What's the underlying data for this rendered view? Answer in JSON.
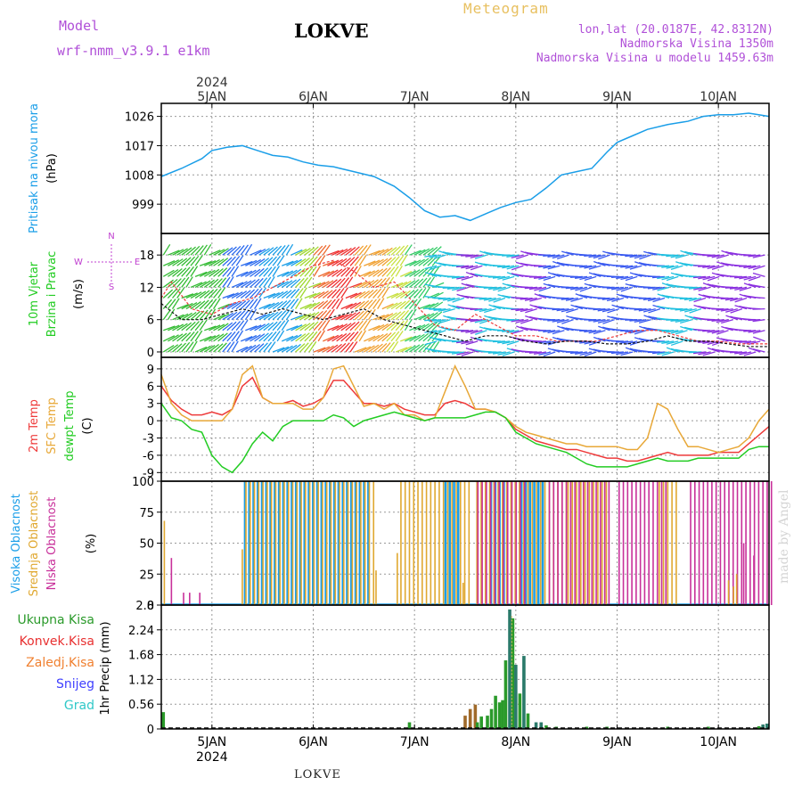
{
  "header": {
    "model_label": "Model",
    "model_name": "wrf-nmm_v3.9.1 e1km",
    "title": "LOKVE",
    "meteogram_label": "Meteogram",
    "coords": "lon,lat (20.0187E, 42.8312N)",
    "elevation": "Nadmorska Visina 1350m",
    "model_elevation": "Nadmorska Visina u modelu 1459.63m"
  },
  "footer": {
    "station": "LOKVE",
    "made_by": "made by Angel"
  },
  "time_axis": {
    "year": "2024",
    "labels": [
      "5JAN",
      "6JAN",
      "7JAN",
      "8JAN",
      "9JAN",
      "10JAN"
    ]
  },
  "legend_compass": {
    "n": "N",
    "s": "S",
    "e": "E",
    "w": "W"
  },
  "colors": {
    "pressure": "#1a9ee8",
    "temp2m": "#ee3a3a",
    "sfc": "#e8a838",
    "dewpt": "#22cc22",
    "high_cloud": "#1a9ee8",
    "mid_cloud": "#e0a830",
    "low_cloud": "#c8309a",
    "precip_total": "#2a9a2a",
    "precip_conv": "#e83030",
    "precip_frozen": "#f08030",
    "precip_snow": "#4040ff",
    "precip_graupel": "#30c8c8"
  },
  "chart_data": [
    {
      "type": "line",
      "panel": "pressure",
      "ylabel_lines": [
        "Pritisak na nivou mora",
        "(hPa)"
      ],
      "ylim": [
        990,
        1030
      ],
      "yticks": [
        999,
        1008,
        1017,
        1026
      ],
      "x_days": [
        4.5,
        4.7,
        4.9,
        5.0,
        5.15,
        5.3,
        5.45,
        5.6,
        5.75,
        5.9,
        6.05,
        6.2,
        6.4,
        6.6,
        6.8,
        6.95,
        7.1,
        7.25,
        7.4,
        7.55,
        7.7,
        7.85,
        8.0,
        8.15,
        8.3,
        8.45,
        8.6,
        8.75,
        8.9,
        9.0,
        9.15,
        9.3,
        9.5,
        9.7,
        9.85,
        10.0,
        10.15,
        10.3,
        10.5
      ],
      "values": [
        1007.5,
        1010,
        1013,
        1015.5,
        1016.5,
        1017,
        1015.5,
        1014,
        1013.5,
        1012,
        1011,
        1010.5,
        1009,
        1007.5,
        1004.5,
        1001,
        997,
        995,
        995.5,
        994,
        996,
        998,
        999.5,
        1000.5,
        1004,
        1008,
        1009,
        1010,
        1015,
        1018,
        1020,
        1022,
        1023.5,
        1024.5,
        1026,
        1026.5,
        1026.5,
        1027,
        1026
      ]
    },
    {
      "type": "line",
      "panel": "wind",
      "ylabel_lines": [
        "10m Vjetar",
        "Brzina i Pravac",
        "(m/s)"
      ],
      "ylim": [
        -1,
        22
      ],
      "yticks": [
        0,
        6,
        12,
        18
      ],
      "series": [
        {
          "name": "wind speed",
          "x_days": [
            4.5,
            4.7,
            4.9,
            5.1,
            5.3,
            5.5,
            5.7,
            5.9,
            6.1,
            6.3,
            6.5,
            6.7,
            6.9,
            7.1,
            7.3,
            7.5,
            7.7,
            7.9,
            8.1,
            8.3,
            8.5,
            8.7,
            8.9,
            9.1,
            9.3,
            9.5,
            9.7,
            9.9,
            10.1,
            10.3,
            10.5
          ],
          "values": [
            9,
            6,
            6,
            7,
            8,
            7,
            8,
            7,
            6,
            7,
            8,
            6,
            5,
            4,
            3,
            2,
            3,
            3,
            2,
            1.5,
            2,
            2,
            1.5,
            1.5,
            2,
            3,
            2,
            2,
            1.5,
            1,
            1
          ]
        },
        {
          "name": "wind gust",
          "x_days": [
            4.5,
            4.6,
            4.8,
            5.0,
            5.2,
            5.4,
            5.6,
            5.8,
            6.0,
            6.2,
            6.4,
            6.6,
            6.8,
            7.0,
            7.2,
            7.4,
            7.6,
            7.8,
            8.0,
            8.2,
            8.4,
            8.6,
            8.8,
            9.0,
            9.2,
            9.4,
            9.6,
            9.8,
            10.0,
            10.2,
            10.5
          ],
          "values": [
            10,
            13,
            8,
            7,
            9,
            10,
            12,
            14,
            16,
            17,
            15,
            12,
            13,
            9,
            5,
            4,
            7,
            5,
            3,
            3,
            2,
            2,
            2,
            3,
            4,
            4,
            3,
            2,
            2,
            1.5,
            1.5
          ]
        }
      ]
    },
    {
      "type": "line",
      "panel": "temperature",
      "ylabel_lines": [
        "2m Temp",
        "SFC Temp",
        "dewpt Temp",
        "(C)"
      ],
      "ylim": [
        -10.5,
        11
      ],
      "yticks": [
        -9,
        -6,
        -3,
        0,
        3,
        6,
        9
      ],
      "x_days": [
        4.5,
        4.6,
        4.7,
        4.8,
        4.9,
        5.0,
        5.1,
        5.2,
        5.3,
        5.4,
        5.5,
        5.6,
        5.7,
        5.8,
        5.9,
        6.0,
        6.1,
        6.2,
        6.3,
        6.4,
        6.5,
        6.6,
        6.7,
        6.8,
        6.9,
        7.0,
        7.1,
        7.2,
        7.3,
        7.4,
        7.5,
        7.6,
        7.7,
        7.8,
        7.9,
        8.0,
        8.1,
        8.2,
        8.3,
        8.4,
        8.5,
        8.6,
        8.7,
        8.8,
        8.9,
        9.0,
        9.1,
        9.2,
        9.3,
        9.4,
        9.5,
        9.6,
        9.7,
        9.8,
        9.9,
        10.0,
        10.1,
        10.2,
        10.3,
        10.4,
        10.5
      ],
      "series": [
        {
          "name": "2m Temp",
          "values": [
            6,
            3.5,
            2,
            1,
            1,
            1.5,
            1,
            2,
            6,
            7.5,
            4,
            3,
            3,
            3.5,
            2.5,
            3,
            4,
            7,
            7,
            5,
            3,
            3,
            2.5,
            3,
            2,
            1.5,
            1,
            1,
            3,
            3.5,
            3,
            2,
            2,
            1.5,
            0.5,
            -1.5,
            -2.5,
            -3.5,
            -4,
            -4.5,
            -5,
            -5,
            -5.5,
            -6,
            -6.5,
            -6.5,
            -7,
            -7,
            -6.5,
            -6,
            -5.5,
            -6,
            -6,
            -6,
            -6,
            -5.5,
            -5.5,
            -5.5,
            -4,
            -2.5,
            -1
          ]
        },
        {
          "name": "SFC Temp",
          "values": [
            8,
            3,
            1,
            0,
            0,
            0,
            0,
            2,
            8,
            9.5,
            4,
            3,
            3,
            3,
            2,
            2,
            4,
            9,
            9.5,
            6,
            2.5,
            3,
            2,
            3,
            1,
            1,
            0,
            0.5,
            5,
            9.5,
            6,
            2,
            2,
            1.5,
            0.5,
            -1,
            -2,
            -2.5,
            -3,
            -3.5,
            -4,
            -4,
            -4.5,
            -4.5,
            -4.5,
            -4.5,
            -5,
            -5,
            -3,
            3,
            2,
            -1.5,
            -4.5,
            -4.5,
            -5,
            -5.5,
            -5,
            -4.5,
            -3,
            0,
            2
          ]
        },
        {
          "name": "dewpt Temp",
          "values": [
            3,
            0.5,
            0,
            -1.5,
            -2,
            -6,
            -8,
            -9,
            -7,
            -4,
            -2,
            -3.5,
            -1,
            0,
            0,
            0,
            0,
            1,
            0.5,
            -1,
            0,
            0.5,
            1,
            1.5,
            1,
            0.5,
            0,
            0.5,
            0.5,
            0.5,
            0.5,
            1,
            1.5,
            1.5,
            0.5,
            -2,
            -3,
            -4,
            -4.5,
            -5,
            -5.5,
            -6.5,
            -7.5,
            -8,
            -8,
            -8,
            -8,
            -7.5,
            -7,
            -6.5,
            -7,
            -7,
            -7,
            -6.5,
            -6.5,
            -6.5,
            -6.5,
            -6.5,
            -5,
            -4.5,
            -4.5
          ]
        }
      ]
    },
    {
      "type": "bar",
      "panel": "cloud",
      "ylabel_lines": [
        "Visoka Oblacnost",
        "Srednja Oblacnost",
        "Niska Oblacnost",
        "(%)"
      ],
      "ylim": [
        0,
        100
      ],
      "yticks": [
        0,
        25,
        50,
        75,
        100
      ],
      "segments": [
        {
          "name": "Visoka Oblacnost",
          "ranges": [
            [
              5.32,
              6.55
            ],
            [
              7.3,
              7.45
            ],
            [
              7.75,
              7.9
            ],
            [
              8.05,
              8.3
            ]
          ]
        },
        {
          "name": "Srednja Oblacnost",
          "ranges": [
            [
              5.32,
              6.6
            ],
            [
              6.85,
              7.55
            ],
            [
              7.6,
              8.5
            ],
            [
              8.5,
              8.9
            ],
            [
              9.4,
              9.6
            ]
          ]
        },
        {
          "name": "Niska Oblacnost",
          "ranges": [
            [
              7.6,
              8.1
            ],
            [
              8.3,
              8.9
            ],
            [
              9.0,
              9.5
            ],
            [
              9.7,
              10.5
            ]
          ]
        }
      ],
      "spikes": [
        {
          "name": "Srednja Oblacnost",
          "x": 4.53,
          "value": 68
        },
        {
          "name": "Niska Oblacnost",
          "x": 4.6,
          "value": 38
        },
        {
          "name": "Niska Oblacnost",
          "x": 4.72,
          "value": 10
        },
        {
          "name": "Niska Oblacnost",
          "x": 4.78,
          "value": 10
        },
        {
          "name": "Niska Oblacnost",
          "x": 4.88,
          "value": 10
        },
        {
          "name": "Srednja Oblacnost",
          "x": 5.3,
          "value": 45
        },
        {
          "name": "Srednja Oblacnost",
          "x": 6.62,
          "value": 28
        },
        {
          "name": "Srednja Oblacnost",
          "x": 6.83,
          "value": 42
        },
        {
          "name": "Srednja Oblacnost",
          "x": 7.48,
          "value": 18
        },
        {
          "name": "Srednja Oblacnost",
          "x": 10.1,
          "value": 20
        },
        {
          "name": "Srednja Oblacnost",
          "x": 10.15,
          "value": 15
        },
        {
          "name": "Srednja Oblacnost",
          "x": 10.18,
          "value": 25
        },
        {
          "name": "Niska Oblacnost",
          "x": 10.25,
          "value": 50
        },
        {
          "name": "Niska Oblacnost",
          "x": 10.35,
          "value": 40
        }
      ]
    },
    {
      "type": "bar",
      "panel": "precip",
      "ylabel_lines": [
        "1hr Precip",
        "(mm)"
      ],
      "legend": [
        "Ukupna Kisa",
        "Konvek.Kisa",
        "Zaledj.Kisa",
        "Snijeg",
        "Grad"
      ],
      "ylim": [
        0,
        2.8
      ],
      "yticks": [
        0,
        0.56,
        1.12,
        1.68,
        2.24,
        2.8
      ],
      "bars": [
        {
          "x": 4.52,
          "value": 0.38,
          "kind": "Ukupna Kisa"
        },
        {
          "x": 6.95,
          "value": 0.15,
          "kind": "Ukupna Kisa"
        },
        {
          "x": 7.5,
          "value": 0.3,
          "kind": "Zaledj.Kisa"
        },
        {
          "x": 7.55,
          "value": 0.45,
          "kind": "Zaledj.Kisa"
        },
        {
          "x": 7.6,
          "value": 0.55,
          "kind": "Zaledj.Kisa"
        },
        {
          "x": 7.62,
          "value": 0.15,
          "kind": "Ukupna Kisa"
        },
        {
          "x": 7.66,
          "value": 0.28,
          "kind": "Ukupna Kisa"
        },
        {
          "x": 7.72,
          "value": 0.3,
          "kind": "Ukupna Kisa"
        },
        {
          "x": 7.76,
          "value": 0.45,
          "kind": "Ukupna Kisa"
        },
        {
          "x": 7.8,
          "value": 0.75,
          "kind": "Ukupna Kisa"
        },
        {
          "x": 7.84,
          "value": 0.6,
          "kind": "Ukupna Kisa"
        },
        {
          "x": 7.87,
          "value": 0.65,
          "kind": "Ukupna Kisa"
        },
        {
          "x": 7.9,
          "value": 1.55,
          "kind": "Ukupna Kisa"
        },
        {
          "x": 7.94,
          "value": 2.7,
          "kind": "Grad"
        },
        {
          "x": 7.97,
          "value": 2.5,
          "kind": "Ukupna Kisa"
        },
        {
          "x": 8.0,
          "value": 1.45,
          "kind": "Grad"
        },
        {
          "x": 8.04,
          "value": 0.8,
          "kind": "Ukupna Kisa"
        },
        {
          "x": 8.08,
          "value": 1.65,
          "kind": "Grad"
        },
        {
          "x": 8.12,
          "value": 0.35,
          "kind": "Ukupna Kisa"
        },
        {
          "x": 8.2,
          "value": 0.15,
          "kind": "Grad"
        },
        {
          "x": 8.25,
          "value": 0.15,
          "kind": "Grad"
        },
        {
          "x": 8.3,
          "value": 0.08,
          "kind": "Ukupna Kisa"
        },
        {
          "x": 8.4,
          "value": 0.05,
          "kind": "Ukupna Kisa"
        },
        {
          "x": 8.7,
          "value": 0.05,
          "kind": "Ukupna Kisa"
        },
        {
          "x": 8.9,
          "value": 0.05,
          "kind": "Ukupna Kisa"
        },
        {
          "x": 9.5,
          "value": 0.05,
          "kind": "Ukupna Kisa"
        },
        {
          "x": 9.9,
          "value": 0.05,
          "kind": "Ukupna Kisa"
        },
        {
          "x": 10.4,
          "value": 0.06,
          "kind": "Ukupna Kisa"
        },
        {
          "x": 10.44,
          "value": 0.1,
          "kind": "Grad"
        },
        {
          "x": 10.48,
          "value": 0.12,
          "kind": "Grad"
        }
      ]
    }
  ]
}
